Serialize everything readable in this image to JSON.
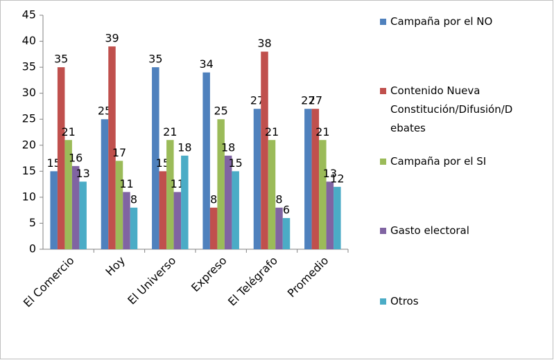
{
  "chart_data": {
    "type": "bar",
    "categories": [
      "El Comercio",
      "Hoy",
      "El Universo",
      "Expreso",
      "El Telégrafo",
      "Promedio"
    ],
    "series": [
      {
        "name": "Campaña por el NO",
        "color": "#4f81bd",
        "values": [
          15,
          25,
          35,
          34,
          27,
          27
        ]
      },
      {
        "name": "Contenido Nueva Constitución/Difusión/Debates",
        "color": "#c0504d",
        "values": [
          35,
          39,
          15,
          8,
          38,
          27
        ]
      },
      {
        "name": "Campaña por el SI",
        "color": "#9bbb59",
        "values": [
          21,
          17,
          21,
          25,
          21,
          21
        ]
      },
      {
        "name": "Gasto electoral",
        "color": "#8064a2",
        "values": [
          16,
          11,
          11,
          18,
          8,
          13
        ]
      },
      {
        "name": "Otros",
        "color": "#4bacc6",
        "values": [
          13,
          8,
          18,
          15,
          6,
          12
        ]
      }
    ],
    "ylim": [
      0,
      45
    ],
    "yticks": [
      0,
      5,
      10,
      15,
      20,
      25,
      30,
      35,
      40,
      45
    ]
  }
}
